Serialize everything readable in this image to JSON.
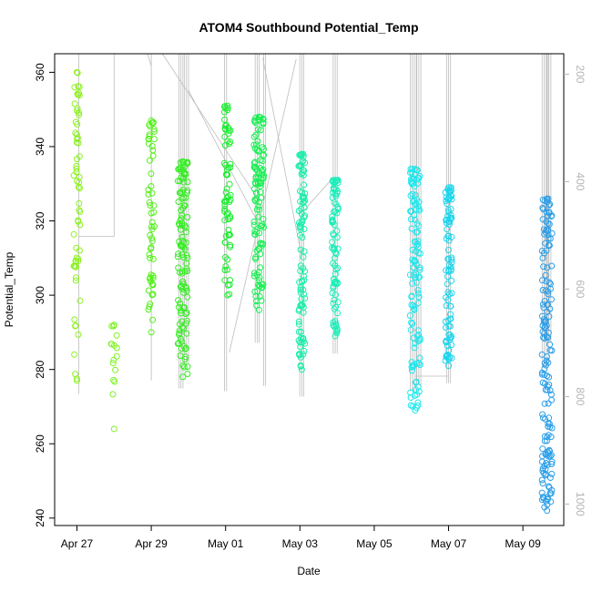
{
  "chart_data": {
    "type": "scatter",
    "title": "ATOM4 Southbound Potential_Temp",
    "xlabel": "Date",
    "ylabel": "Potential_Temp",
    "x_ticks": [
      "Apr 27",
      "Apr 29",
      "May 01",
      "May 03",
      "May 05",
      "May 07",
      "May 09"
    ],
    "y_ticks": [
      240,
      260,
      280,
      300,
      320,
      340,
      360
    ],
    "y2_ticks": [
      200,
      400,
      600,
      800,
      1000
    ],
    "x_range_days": [
      -0.6,
      13.1
    ],
    "x_tick_days": [
      0,
      2,
      4,
      6,
      8,
      10,
      12
    ],
    "ylim": [
      238,
      365
    ],
    "y2lim": [
      162,
      1040
    ],
    "y2_reversed": true,
    "grid": false,
    "legend": "none",
    "colors": {
      "background": "#ffffff",
      "axis": "#000000",
      "right_axis": "#b5b5b5",
      "track_line": "#bdbdbd"
    },
    "profile_groups": [
      {
        "day": 0.0,
        "ymin": 277,
        "ymax": 360,
        "color": "#8cf21f",
        "n": 60
      },
      {
        "day": 1.0,
        "ymin": 264,
        "ymax": 292,
        "color": "#7ff227",
        "n": 14
      },
      {
        "day": 2.0,
        "ymin": 290,
        "ymax": 347,
        "color": "#55ef1a",
        "n": 55
      },
      {
        "day": 2.85,
        "ymin": 278,
        "ymax": 336,
        "color": "#35ee22",
        "n": 120
      },
      {
        "day": 4.05,
        "ymin": 300,
        "ymax": 351,
        "color": "#1aef2e",
        "n": 70
      },
      {
        "day": 4.9,
        "ymin": 296,
        "ymax": 348,
        "color": "#1aee52",
        "n": 110
      },
      {
        "day": 6.05,
        "ymin": 280,
        "ymax": 338,
        "color": "#1aeeaa",
        "n": 95
      },
      {
        "day": 6.95,
        "ymin": 289,
        "ymax": 331,
        "color": "#1aeeb8",
        "n": 80
      },
      {
        "day": 9.1,
        "ymin": 269,
        "ymax": 334,
        "color": "#1ae8ee",
        "n": 120
      },
      {
        "day": 10.0,
        "ymin": 281,
        "ymax": 329,
        "color": "#1ad6ee",
        "n": 90
      },
      {
        "day": 12.65,
        "ymin": 242,
        "ymax": 326,
        "color": "#2a9ee8",
        "n": 160
      }
    ],
    "track_verticals": [
      {
        "day": 0.05,
        "y2min": 162,
        "y2max": 795,
        "count": 1
      },
      {
        "day": 2.0,
        "y2min": 162,
        "y2max": 770,
        "count": 1
      },
      {
        "day": 2.8,
        "y2min": 162,
        "y2max": 785,
        "count": 3
      },
      {
        "day": 2.95,
        "y2min": 162,
        "y2max": 740,
        "count": 3
      },
      {
        "day": 4.0,
        "y2min": 162,
        "y2max": 790,
        "count": 2
      },
      {
        "day": 4.85,
        "y2min": 162,
        "y2max": 700,
        "count": 3
      },
      {
        "day": 5.05,
        "y2min": 162,
        "y2max": 780,
        "count": 2
      },
      {
        "day": 6.05,
        "y2min": 162,
        "y2max": 800,
        "count": 3
      },
      {
        "day": 6.95,
        "y2min": 162,
        "y2max": 720,
        "count": 3
      },
      {
        "day": 9.05,
        "y2min": 162,
        "y2max": 790,
        "count": 4
      },
      {
        "day": 9.2,
        "y2min": 162,
        "y2max": 780,
        "count": 3
      },
      {
        "day": 10.0,
        "y2min": 162,
        "y2max": 775,
        "count": 3
      },
      {
        "day": 12.6,
        "y2min": 162,
        "y2max": 745,
        "count": 4
      },
      {
        "day": 12.7,
        "y2min": 162,
        "y2max": 700,
        "count": 3
      }
    ],
    "track_segments": [
      [
        {
          "day": 0.05,
          "y2": 502
        },
        {
          "day": 1.0,
          "y2": 502
        },
        {
          "day": 1.0,
          "y2": 162
        }
      ],
      [
        {
          "day": 1.9,
          "y2": 162
        },
        {
          "day": 2.0,
          "y2": 185
        }
      ],
      [
        {
          "day": 2.3,
          "y2": 162
        },
        {
          "day": 4.9,
          "y2": 435
        }
      ],
      [
        {
          "day": 3.0,
          "y2": 230
        },
        {
          "day": 4.9,
          "y2": 480
        }
      ],
      [
        {
          "day": 4.1,
          "y2": 718
        },
        {
          "day": 5.9,
          "y2": 172
        }
      ],
      [
        {
          "day": 5.0,
          "y2": 170
        },
        {
          "day": 6.05,
          "y2": 540
        }
      ],
      [
        {
          "day": 6.05,
          "y2": 458
        },
        {
          "day": 6.9,
          "y2": 392
        }
      ],
      [
        {
          "day": 6.3,
          "y2": 162
        },
        {
          "day": 7.0,
          "y2": 162
        }
      ],
      [
        {
          "day": 9.1,
          "y2": 762
        },
        {
          "day": 10.0,
          "y2": 762
        }
      ]
    ]
  }
}
